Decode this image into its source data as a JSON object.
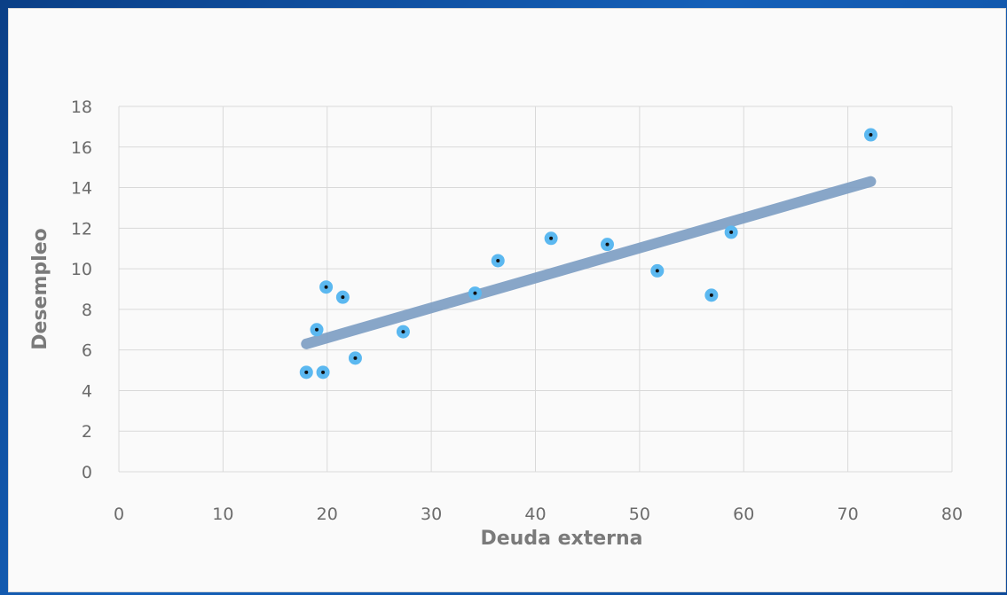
{
  "chart_data": {
    "type": "scatter",
    "title": "",
    "xlabel": "Deuda externa",
    "ylabel": "Desempleo",
    "xlim": [
      0,
      80
    ],
    "ylim": [
      0,
      18
    ],
    "xticks": [
      "0",
      "10",
      "20",
      "30",
      "40",
      "50",
      "60",
      "70",
      "80"
    ],
    "yticks": [
      "0",
      "2",
      "4",
      "6",
      "8",
      "10",
      "12",
      "14",
      "16",
      "18"
    ],
    "grid": true,
    "legend": "none",
    "points": [
      {
        "x": 18.0,
        "y": 4.9
      },
      {
        "x": 19.0,
        "y": 7.0
      },
      {
        "x": 19.6,
        "y": 4.9
      },
      {
        "x": 19.9,
        "y": 9.1
      },
      {
        "x": 21.5,
        "y": 8.6
      },
      {
        "x": 22.7,
        "y": 5.6
      },
      {
        "x": 27.3,
        "y": 6.9
      },
      {
        "x": 34.2,
        "y": 8.8
      },
      {
        "x": 36.4,
        "y": 10.4
      },
      {
        "x": 41.5,
        "y": 11.5
      },
      {
        "x": 46.9,
        "y": 11.2
      },
      {
        "x": 51.7,
        "y": 9.9
      },
      {
        "x": 56.9,
        "y": 8.7
      },
      {
        "x": 58.8,
        "y": 11.8
      },
      {
        "x": 72.2,
        "y": 16.6
      }
    ],
    "trendline": {
      "x": [
        18.0,
        72.2
      ],
      "y": [
        6.3,
        14.3
      ]
    },
    "colors": {
      "marker": "#5bb8f0",
      "marker_center": "#111111",
      "trendline": "#7f9fc4",
      "grid": "#d9d9d9"
    }
  }
}
